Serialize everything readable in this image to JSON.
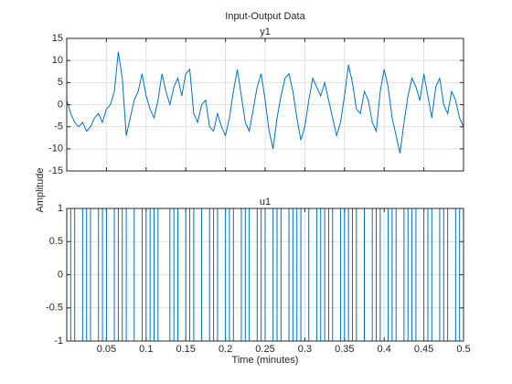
{
  "title": "Input-Output Data",
  "ylabel": "Amplitude",
  "xlabel": "Time (minutes)",
  "chart_data": [
    {
      "type": "line",
      "title": "y1",
      "grid": true,
      "color": "#0072bd",
      "x": [
        0,
        0.005,
        0.01,
        0.015,
        0.02,
        0.025,
        0.03,
        0.035,
        0.04,
        0.045,
        0.05,
        0.055,
        0.06,
        0.065,
        0.07,
        0.075,
        0.08,
        0.085,
        0.09,
        0.095,
        0.1,
        0.105,
        0.11,
        0.115,
        0.12,
        0.125,
        0.13,
        0.135,
        0.14,
        0.145,
        0.15,
        0.155,
        0.16,
        0.165,
        0.17,
        0.175,
        0.18,
        0.185,
        0.19,
        0.195,
        0.2,
        0.205,
        0.21,
        0.215,
        0.22,
        0.225,
        0.23,
        0.235,
        0.24,
        0.245,
        0.25,
        0.255,
        0.26,
        0.265,
        0.27,
        0.275,
        0.28,
        0.285,
        0.29,
        0.295,
        0.3,
        0.305,
        0.31,
        0.315,
        0.32,
        0.325,
        0.33,
        0.335,
        0.34,
        0.345,
        0.35,
        0.355,
        0.36,
        0.365,
        0.37,
        0.375,
        0.38,
        0.385,
        0.39,
        0.395,
        0.4,
        0.405,
        0.41,
        0.415,
        0.42,
        0.425,
        0.43,
        0.435,
        0.44,
        0.445,
        0.45,
        0.455,
        0.46,
        0.465,
        0.47,
        0.475,
        0.48,
        0.485,
        0.49,
        0.495,
        0.5
      ],
      "values": [
        1,
        -2,
        -4,
        -5,
        -4,
        -6,
        -5,
        -3,
        -2,
        -4,
        -1,
        0,
        3,
        12,
        6,
        -7,
        -3,
        1,
        3,
        7,
        2,
        -1,
        -3,
        1,
        7,
        3,
        0,
        4,
        6,
        2,
        7,
        8,
        -2,
        -4,
        0,
        1,
        -5,
        -6,
        -2,
        -5,
        -7,
        -3,
        3,
        8,
        2,
        -4,
        -6,
        -1,
        4,
        7,
        1,
        -6,
        -10,
        -3,
        2,
        6,
        7,
        3,
        -3,
        -8,
        -5,
        1,
        6,
        4,
        2,
        5,
        1,
        -3,
        -7,
        -4,
        2,
        9,
        5,
        -1,
        -2,
        3,
        1,
        -4,
        -6,
        3,
        8,
        4,
        -3,
        -7,
        -11,
        -4,
        2,
        6,
        4,
        1,
        7,
        2,
        -3,
        4,
        6,
        0,
        -2,
        3,
        1,
        -3,
        -5
      ],
      "ylim": [
        -15,
        15
      ],
      "yticks": [
        -15,
        -10,
        -5,
        0,
        5,
        10,
        15
      ]
    },
    {
      "type": "stairs",
      "title": "u1",
      "grid": true,
      "color": "#0072bd",
      "x": [
        0,
        0.005,
        0.01,
        0.015,
        0.02,
        0.025,
        0.03,
        0.035,
        0.04,
        0.045,
        0.05,
        0.055,
        0.06,
        0.065,
        0.07,
        0.075,
        0.08,
        0.085,
        0.09,
        0.095,
        0.1,
        0.105,
        0.11,
        0.115,
        0.12,
        0.125,
        0.13,
        0.135,
        0.14,
        0.145,
        0.15,
        0.155,
        0.16,
        0.165,
        0.17,
        0.175,
        0.18,
        0.185,
        0.19,
        0.195,
        0.2,
        0.205,
        0.21,
        0.215,
        0.22,
        0.225,
        0.23,
        0.235,
        0.24,
        0.245,
        0.25,
        0.255,
        0.26,
        0.265,
        0.27,
        0.275,
        0.28,
        0.285,
        0.29,
        0.295,
        0.3,
        0.305,
        0.31,
        0.315,
        0.32,
        0.325,
        0.33,
        0.335,
        0.34,
        0.345,
        0.35,
        0.355,
        0.36,
        0.365,
        0.37,
        0.375,
        0.38,
        0.385,
        0.39,
        0.395,
        0.4,
        0.405,
        0.41,
        0.415,
        0.42,
        0.425,
        0.43,
        0.435,
        0.44,
        0.445,
        0.45,
        0.455,
        0.46,
        0.465,
        0.47,
        0.475,
        0.48,
        0.485,
        0.49,
        0.495,
        0.5
      ],
      "values": [
        1,
        -1,
        1,
        1,
        -1,
        1,
        -1,
        -1,
        1,
        -1,
        1,
        1,
        -1,
        1,
        -1,
        1,
        1,
        -1,
        -1,
        1,
        -1,
        1,
        -1,
        1,
        1,
        1,
        -1,
        1,
        -1,
        -1,
        1,
        -1,
        1,
        1,
        -1,
        -1,
        1,
        -1,
        1,
        1,
        -1,
        1,
        -1,
        -1,
        1,
        -1,
        1,
        1,
        -1,
        1,
        -1,
        -1,
        1,
        -1,
        1,
        1,
        -1,
        1,
        -1,
        1,
        1,
        -1,
        -1,
        1,
        -1,
        1,
        -1,
        1,
        1,
        -1,
        1,
        -1,
        1,
        -1,
        -1,
        1,
        1,
        -1,
        1,
        -1,
        -1,
        1,
        -1,
        1,
        1,
        -1,
        1,
        -1,
        1,
        1,
        -1,
        1,
        -1,
        -1,
        1,
        -1,
        1,
        1,
        -1,
        1,
        -1
      ],
      "xlim": [
        0,
        0.5
      ],
      "xticks": [
        0.05,
        0.1,
        0.15,
        0.2,
        0.25,
        0.3,
        0.35,
        0.4,
        0.45,
        0.5
      ],
      "ylim": [
        -1,
        1
      ],
      "yticks": [
        -1,
        -0.5,
        0,
        0.5,
        1
      ]
    }
  ]
}
